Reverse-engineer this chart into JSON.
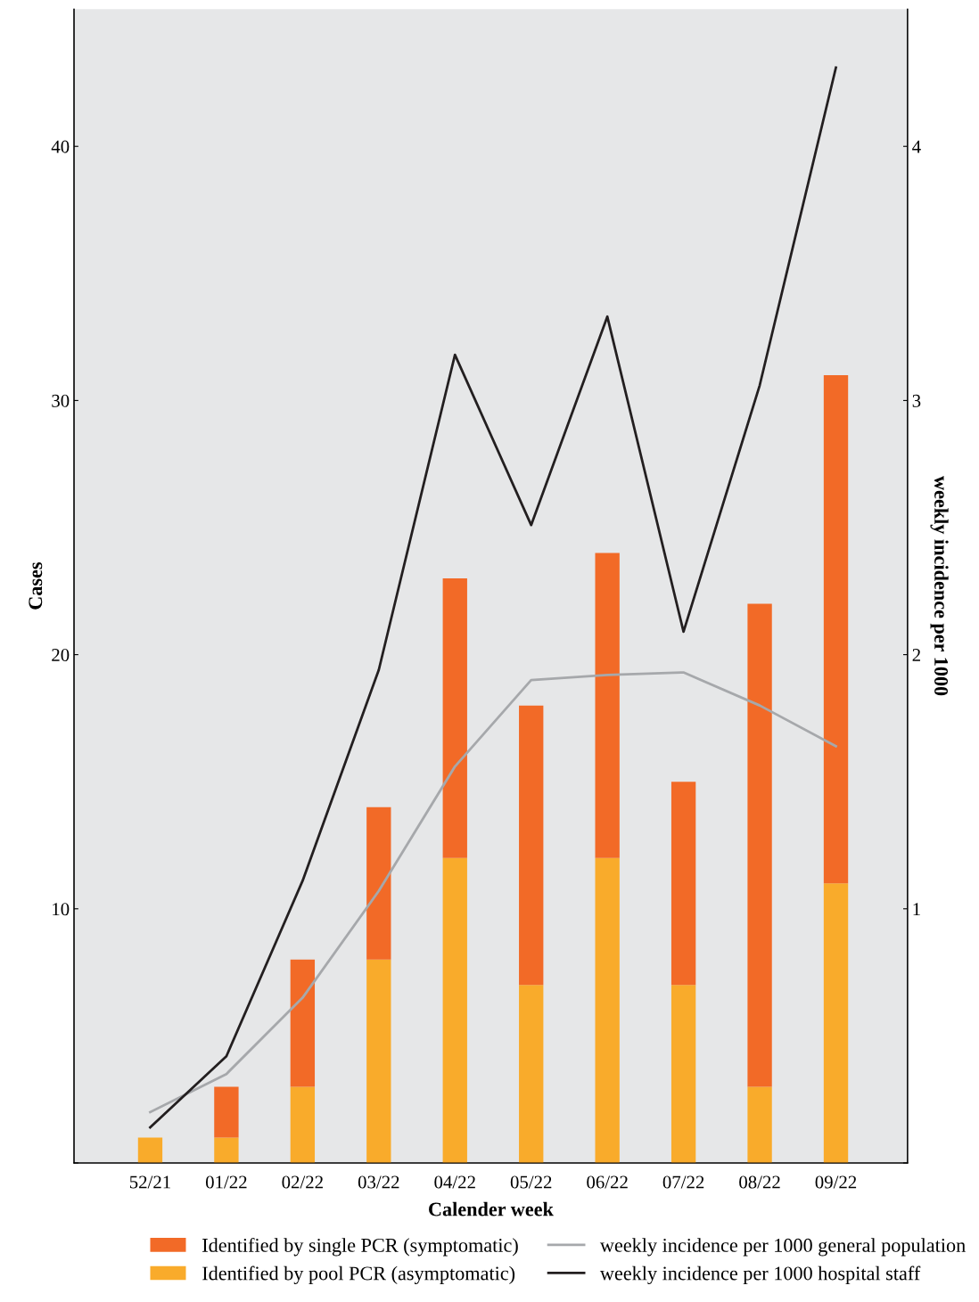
{
  "chart_data": {
    "type": "bar",
    "stacked": true,
    "xlabel": "Calender week",
    "ylabel": "Cases",
    "y2label": "weekly incidence per 1000",
    "categories": [
      "52/21",
      "01/22",
      "02/22",
      "03/22",
      "04/22",
      "05/22",
      "06/22",
      "07/22",
      "08/22",
      "09/22"
    ],
    "series": [
      {
        "name": "Identified by pool PCR (asymptomatic)",
        "color": "#f9ab2b",
        "values": [
          1,
          1,
          3,
          8,
          12,
          7,
          12,
          7,
          3,
          11
        ]
      },
      {
        "name": "Identified by single PCR (symptomatic)",
        "color": "#f26a27",
        "values": [
          0,
          2,
          5,
          6,
          11,
          11,
          12,
          8,
          19,
          20
        ]
      },
      {
        "name": "weekly incidence per 1000 general population",
        "type": "line",
        "axis": "y2",
        "color": "#a6a8ab",
        "values": [
          0.2,
          0.35,
          0.65,
          1.07,
          1.56,
          1.9,
          1.92,
          1.93,
          1.8,
          1.64
        ]
      },
      {
        "name": "weekly incidence per 1000 hospital staff",
        "type": "line",
        "axis": "y2",
        "color": "#231f20",
        "values": [
          0.14,
          0.42,
          1.11,
          1.94,
          3.18,
          2.51,
          3.33,
          2.09,
          3.06,
          4.31
        ]
      }
    ],
    "ylim": [
      0,
      45.4
    ],
    "yticks": [
      {
        "value": 0,
        "label": null
      },
      10,
      20,
      30,
      40
    ],
    "y2lim": [
      0,
      4.54
    ],
    "y2ticks": [
      {
        "value": 0,
        "label": null
      },
      1,
      2,
      3,
      4
    ],
    "grid": false,
    "legend": "bottom",
    "marker": "none",
    "line_style": "solid"
  }
}
